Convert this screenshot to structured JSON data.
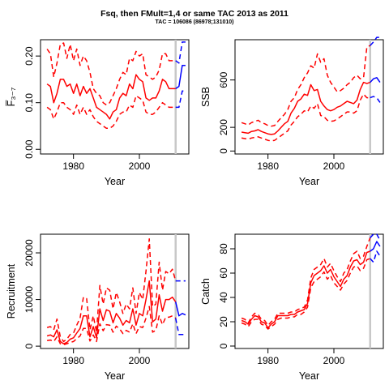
{
  "figure": {
    "title": "Fsq, then FMult=1,4 or same TAC 2013 as 2011",
    "subtitle": "TAC = 106086 (86978;131010)"
  },
  "colors": {
    "historic": "#ff0000",
    "forecast": "#0000ff",
    "marker": "#c8c8c8",
    "axis": "#000000"
  },
  "chart_data": [
    {
      "type": "line",
      "panel": "top-left",
      "xlabel": "Year",
      "ylabel": "F̅₃₋₇",
      "xlim": [
        1970,
        2015
      ],
      "ylim": [
        -0.01,
        0.235
      ],
      "xticks": [
        1980,
        2000
      ],
      "xtick_labels": [
        "1980",
        "2000"
      ],
      "yticks": [
        0.0,
        0.1,
        0.2
      ],
      "ytick_labels": [
        "0.00",
        "0.10",
        "0.20"
      ],
      "marker_year": 2011,
      "x": [
        1972,
        1973,
        1974,
        1975,
        1976,
        1977,
        1978,
        1979,
        1980,
        1981,
        1982,
        1983,
        1984,
        1985,
        1986,
        1987,
        1988,
        1989,
        1990,
        1991,
        1992,
        1993,
        1994,
        1995,
        1996,
        1997,
        1998,
        1999,
        2000,
        2001,
        2002,
        2003,
        2004,
        2005,
        2006,
        2007,
        2008,
        2009,
        2010,
        2011
      ],
      "series": [
        {
          "role": "upper",
          "values": [
            0.215,
            0.205,
            0.155,
            0.185,
            0.225,
            0.228,
            0.195,
            0.225,
            0.19,
            0.215,
            0.18,
            0.2,
            0.19,
            0.165,
            0.13,
            0.12,
            0.115,
            0.1,
            0.095,
            0.1,
            0.115,
            0.13,
            0.15,
            0.165,
            0.16,
            0.195,
            0.19,
            0.21,
            0.2,
            0.205,
            0.16,
            0.155,
            0.15,
            0.155,
            0.17,
            0.205,
            0.205,
            0.19,
            0.19,
            0.19
          ]
        },
        {
          "role": "median",
          "values": [
            0.14,
            0.135,
            0.1,
            0.12,
            0.15,
            0.15,
            0.135,
            0.14,
            0.12,
            0.14,
            0.115,
            0.135,
            0.12,
            0.13,
            0.11,
            0.09,
            0.085,
            0.08,
            0.075,
            0.065,
            0.08,
            0.085,
            0.11,
            0.12,
            0.115,
            0.14,
            0.13,
            0.16,
            0.15,
            0.145,
            0.11,
            0.105,
            0.11,
            0.11,
            0.125,
            0.15,
            0.145,
            0.13,
            0.13,
            0.13
          ]
        },
        {
          "role": "lower",
          "values": [
            0.09,
            0.085,
            0.065,
            0.08,
            0.1,
            0.1,
            0.09,
            0.085,
            0.075,
            0.095,
            0.075,
            0.09,
            0.075,
            0.085,
            0.07,
            0.06,
            0.055,
            0.05,
            0.045,
            0.045,
            0.05,
            0.06,
            0.075,
            0.08,
            0.08,
            0.095,
            0.09,
            0.115,
            0.11,
            0.105,
            0.08,
            0.075,
            0.075,
            0.08,
            0.09,
            0.1,
            0.095,
            0.09,
            0.09,
            0.09
          ]
        }
      ],
      "forecast": {
        "x": [
          2011,
          2012,
          2013,
          2014
        ],
        "series": [
          {
            "role": "upper",
            "values": [
              0.19,
              0.185,
              0.23,
              0.23
            ]
          },
          {
            "role": "median",
            "values": [
              0.13,
              0.135,
              0.18,
              0.18
            ]
          },
          {
            "role": "lower",
            "values": [
              0.09,
              0.09,
              0.125,
              0.125
            ]
          }
        ]
      }
    },
    {
      "type": "line",
      "panel": "top-right",
      "xlabel": "Year",
      "ylabel": "SSB",
      "xlim": [
        1970,
        2015
      ],
      "ylim": [
        -25,
        940
      ],
      "xticks": [
        1980,
        2000
      ],
      "xtick_labels": [
        "1980",
        "2000"
      ],
      "yticks": [
        0,
        200,
        600
      ],
      "ytick_labels": [
        "0",
        "200",
        "600"
      ],
      "marker_year": 2011,
      "x": [
        1972,
        1973,
        1974,
        1975,
        1976,
        1977,
        1978,
        1979,
        1980,
        1981,
        1982,
        1983,
        1984,
        1985,
        1986,
        1987,
        1988,
        1989,
        1990,
        1991,
        1992,
        1993,
        1994,
        1995,
        1996,
        1997,
        1998,
        1999,
        2000,
        2001,
        2002,
        2003,
        2004,
        2005,
        2006,
        2007,
        2008,
        2009,
        2010,
        2011
      ],
      "series": [
        {
          "role": "upper",
          "values": [
            240,
            230,
            220,
            240,
            250,
            260,
            240,
            230,
            215,
            210,
            215,
            250,
            280,
            310,
            350,
            420,
            450,
            520,
            560,
            620,
            660,
            720,
            700,
            820,
            750,
            780,
            640,
            580,
            540,
            500,
            510,
            530,
            560,
            580,
            620,
            640,
            610,
            620,
            880,
            890
          ]
        },
        {
          "role": "median",
          "values": [
            160,
            155,
            150,
            165,
            170,
            180,
            165,
            155,
            145,
            140,
            145,
            170,
            200,
            230,
            250,
            320,
            360,
            420,
            440,
            480,
            470,
            560,
            510,
            520,
            420,
            380,
            350,
            340,
            350,
            370,
            380,
            400,
            420,
            410,
            400,
            430,
            520,
            580,
            570,
            580
          ]
        },
        {
          "role": "lower",
          "values": [
            110,
            105,
            100,
            110,
            115,
            120,
            110,
            100,
            90,
            85,
            90,
            110,
            130,
            150,
            170,
            220,
            250,
            290,
            310,
            340,
            330,
            380,
            360,
            400,
            300,
            290,
            260,
            250,
            255,
            270,
            290,
            310,
            330,
            330,
            320,
            340,
            430,
            480,
            450,
            450
          ]
        }
      ],
      "forecast": {
        "x": [
          2011,
          2012,
          2013,
          2014
        ],
        "series": [
          {
            "role": "upper",
            "values": [
              890,
              920,
              960,
              960
            ]
          },
          {
            "role": "median",
            "values": [
              580,
              610,
              620,
              580
            ]
          },
          {
            "role": "lower",
            "values": [
              450,
              460,
              450,
              410
            ]
          }
        ]
      }
    },
    {
      "type": "line",
      "panel": "bottom-left",
      "xlabel": "Year",
      "ylabel": "Recruitment",
      "xlim": [
        1970,
        2015
      ],
      "ylim": [
        -500,
        24000
      ],
      "xticks": [
        1980,
        2000
      ],
      "xtick_labels": [
        "1980",
        "2000"
      ],
      "yticks": [
        0,
        10000,
        20000
      ],
      "ytick_labels": [
        "0",
        "10000",
        "20000"
      ],
      "marker_year": 2011,
      "x": [
        1972,
        1973,
        1974,
        1975,
        1976,
        1977,
        1978,
        1979,
        1980,
        1981,
        1982,
        1983,
        1984,
        1985,
        1986,
        1987,
        1988,
        1989,
        1990,
        1991,
        1992,
        1993,
        1994,
        1995,
        1996,
        1997,
        1998,
        1999,
        2000,
        2001,
        2002,
        2003,
        2004,
        2005,
        2006,
        2007,
        2008,
        2009,
        2010,
        2011
      ],
      "series": [
        {
          "role": "upper",
          "values": [
            4000,
            4200,
            3500,
            5800,
            2000,
            1000,
            1500,
            2500,
            2800,
            4500,
            6000,
            10500,
            10200,
            3500,
            6500,
            3000,
            13000,
            9000,
            12500,
            12000,
            8000,
            11500,
            9500,
            7000,
            9000,
            8000,
            12500,
            7000,
            11500,
            10000,
            16000,
            23000,
            8500,
            9000,
            18000,
            12000,
            16000,
            15500,
            16500,
            14000
          ]
        },
        {
          "role": "median",
          "values": [
            2200,
            2400,
            2000,
            3500,
            1000,
            500,
            800,
            1500,
            1800,
            2800,
            3800,
            6500,
            6500,
            2000,
            4200,
            1800,
            8000,
            5500,
            7800,
            7500,
            5000,
            7000,
            6000,
            4500,
            5500,
            5000,
            8000,
            4500,
            7000,
            6500,
            10000,
            14000,
            5200,
            5800,
            11000,
            7500,
            10000,
            10000,
            10500,
            9500
          ]
        },
        {
          "role": "lower",
          "values": [
            1200,
            1300,
            1000,
            2000,
            500,
            300,
            500,
            800,
            1000,
            1600,
            2200,
            3800,
            3800,
            1100,
            2400,
            1000,
            4800,
            3300,
            4600,
            4500,
            3000,
            4300,
            3700,
            2700,
            3400,
            3000,
            4800,
            2700,
            4200,
            4000,
            6000,
            8500,
            3000,
            3400,
            6500,
            4600,
            6200,
            6200,
            6500,
            6000
          ]
        }
      ],
      "forecast": {
        "x": [
          2011,
          2012,
          2013,
          2014
        ],
        "series": [
          {
            "role": "upper",
            "values": [
              14000,
              14000,
              14000,
              14000
            ]
          },
          {
            "role": "median",
            "values": [
              9500,
              6500,
              7000,
              6700
            ]
          },
          {
            "role": "lower",
            "values": [
              6000,
              2500,
              2500,
              2500
            ]
          }
        ]
      }
    },
    {
      "type": "line",
      "panel": "bottom-right",
      "xlabel": "Year",
      "ylabel": "Catch",
      "xlim": [
        1970,
        2015
      ],
      "ylim": [
        -2,
        92
      ],
      "xticks": [
        1980,
        2000
      ],
      "xtick_labels": [
        "1980",
        "2000"
      ],
      "yticks": [
        0,
        20,
        40,
        60,
        80
      ],
      "ytick_labels": [
        "0",
        "20",
        "40",
        "60",
        "80"
      ],
      "marker_year": 2011,
      "x": [
        1972,
        1973,
        1974,
        1975,
        1976,
        1977,
        1978,
        1979,
        1980,
        1981,
        1982,
        1983,
        1984,
        1985,
        1986,
        1987,
        1988,
        1989,
        1990,
        1991,
        1992,
        1993,
        1994,
        1995,
        1996,
        1997,
        1998,
        1999,
        2000,
        2001,
        2002,
        2003,
        2004,
        2005,
        2006,
        2007,
        2008,
        2009,
        2010,
        2011
      ],
      "series": [
        {
          "role": "upper",
          "values": [
            23,
            22,
            19,
            24,
            27,
            26,
            22,
            21,
            17,
            20,
            22,
            27,
            27,
            27,
            27,
            28,
            28,
            30,
            31,
            32,
            38,
            56,
            63,
            65,
            67,
            72,
            65,
            68,
            62,
            57,
            53,
            60,
            63,
            70,
            76,
            78,
            72,
            74,
            82,
            89
          ]
        },
        {
          "role": "median",
          "values": [
            21,
            20,
            18,
            22,
            25,
            24,
            20,
            19,
            15,
            18,
            20,
            25,
            25,
            25,
            25,
            26,
            26,
            28,
            29,
            30,
            35,
            52,
            58,
            60,
            62,
            66,
            60,
            63,
            57,
            53,
            49,
            55,
            58,
            65,
            70,
            71,
            67,
            69,
            77,
            78
          ]
        },
        {
          "role": "lower",
          "values": [
            19,
            18,
            16,
            20,
            22,
            22,
            18,
            17,
            14,
            16,
            18,
            22,
            23,
            23,
            23,
            24,
            24,
            26,
            26,
            28,
            32,
            48,
            53,
            55,
            57,
            61,
            55,
            58,
            52,
            49,
            46,
            51,
            54,
            60,
            65,
            66,
            62,
            64,
            71,
            72
          ]
        }
      ],
      "forecast": {
        "x": [
          2011,
          2012,
          2013,
          2014
        ],
        "series": [
          {
            "role": "upper",
            "values": [
              89,
              92,
              92,
              87
            ]
          },
          {
            "role": "median",
            "values": [
              78,
              80,
              86,
              82
            ]
          },
          {
            "role": "lower",
            "values": [
              72,
              69,
              78,
              74
            ]
          }
        ]
      }
    }
  ]
}
